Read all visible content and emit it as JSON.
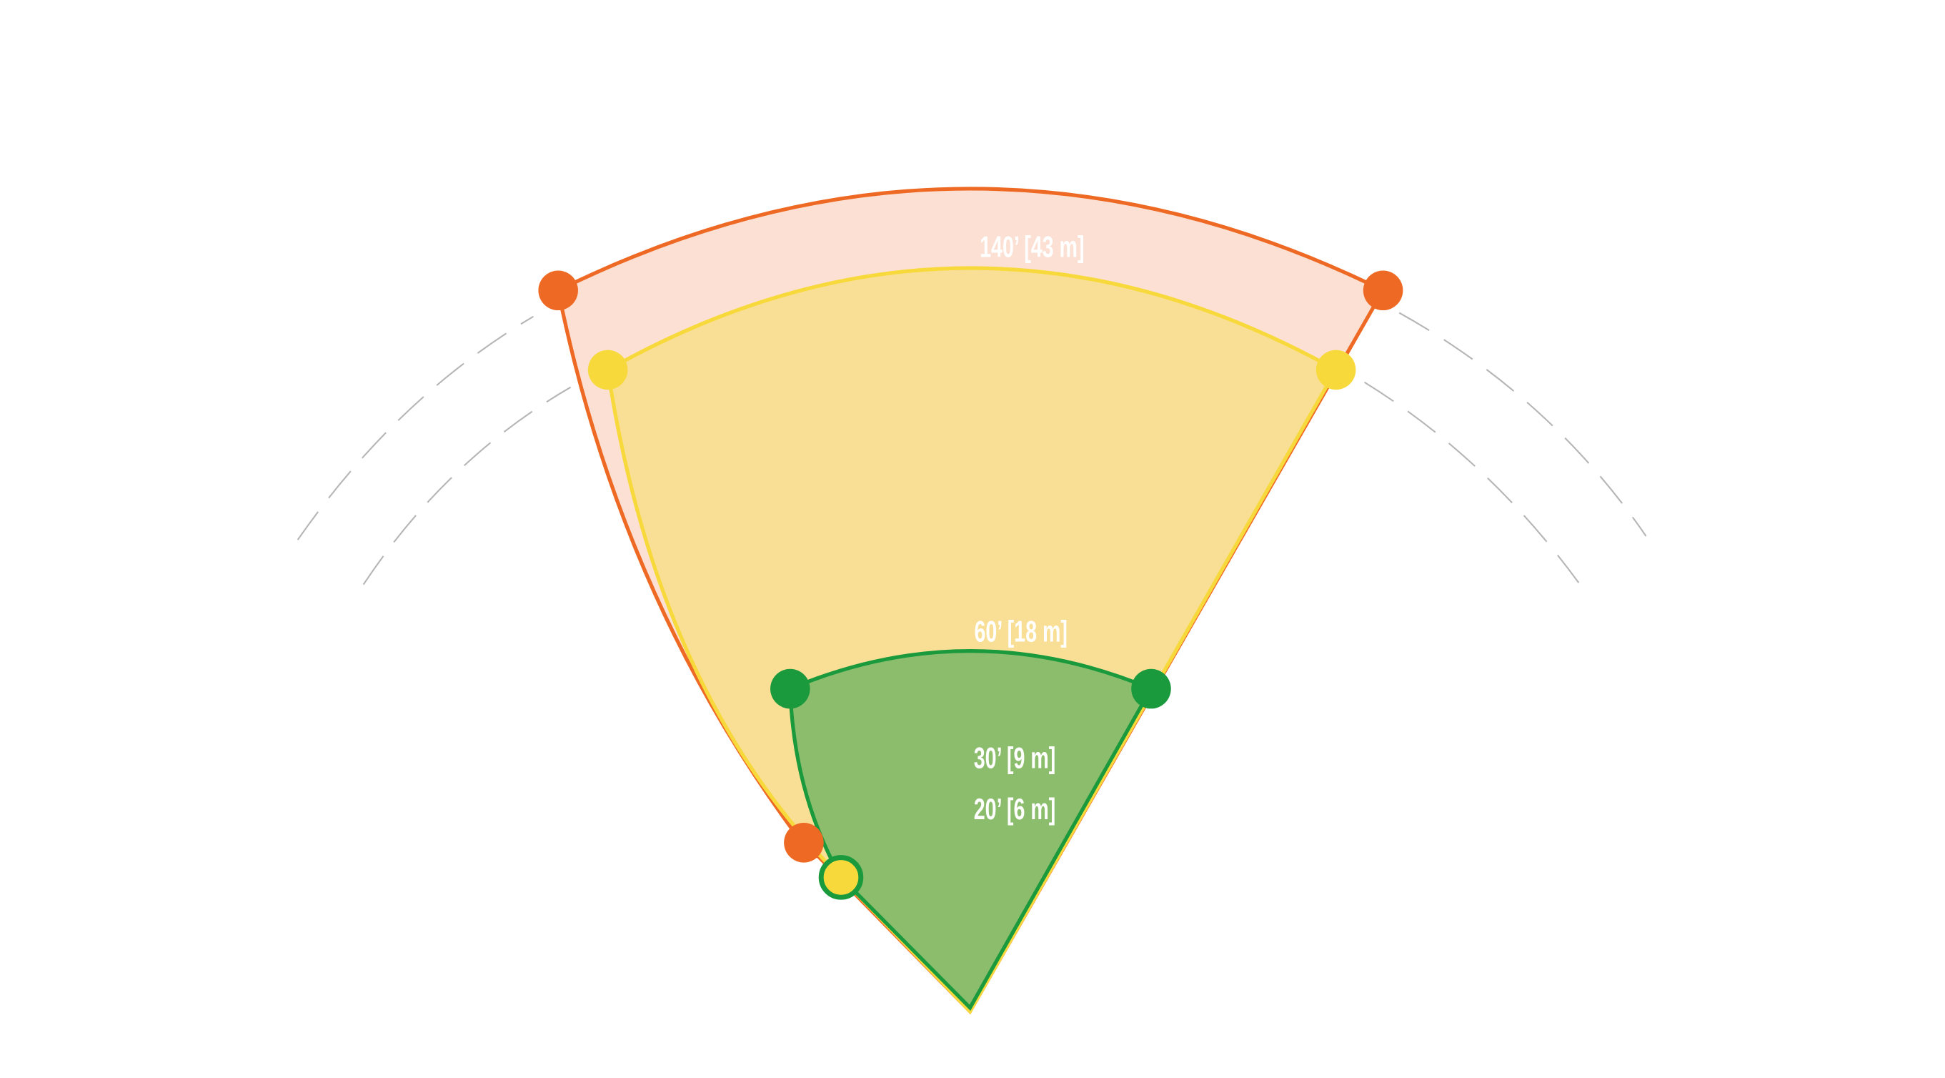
{
  "labels": {
    "outer_range": "140’ [43 m]",
    "middle_range": "60’ [18 m]",
    "inner_range_1": "30’ [9 m]",
    "inner_range_2": "20’ [6 m]"
  }
}
